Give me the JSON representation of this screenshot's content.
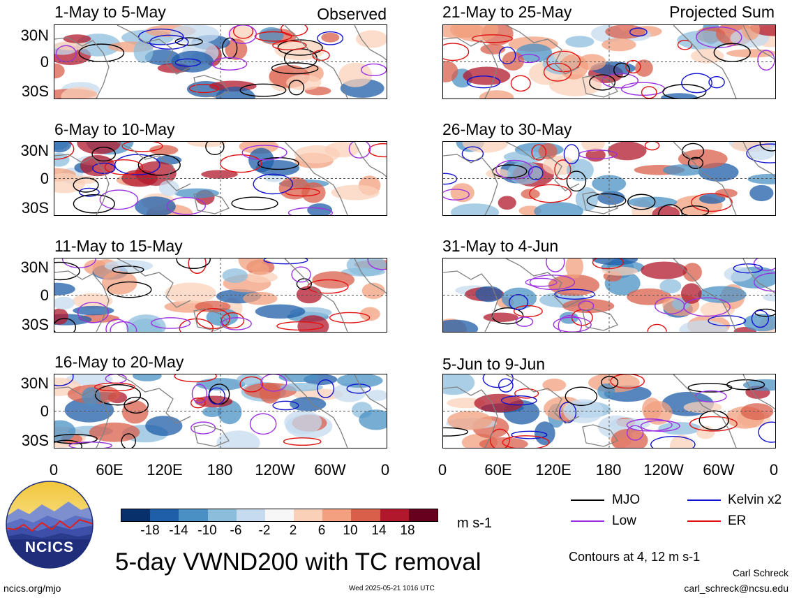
{
  "panels": {
    "left": [
      {
        "title": "1-May to 5-May",
        "label": "Observed"
      },
      {
        "title": "6-May to 10-May",
        "label": ""
      },
      {
        "title": "11-May to 15-May",
        "label": ""
      },
      {
        "title": "16-May to 20-May",
        "label": ""
      }
    ],
    "right": [
      {
        "title": "21-May to 25-May",
        "label": "Projected Sum"
      },
      {
        "title": "26-May to 30-May",
        "label": ""
      },
      {
        "title": "31-May to 4-Jun",
        "label": ""
      },
      {
        "title": "5-Jun to 9-Jun",
        "label": ""
      }
    ]
  },
  "axes": {
    "lat_labels": [
      "30N",
      "0",
      "30S"
    ],
    "lon_labels": [
      "0",
      "60E",
      "120E",
      "180",
      "120W",
      "60W",
      "0"
    ]
  },
  "colorbar": {
    "labels": [
      "-18",
      "-14",
      "-10",
      "-6",
      "-2",
      "2",
      "6",
      "10",
      "14",
      "18"
    ],
    "colors": [
      "#08306b",
      "#1f5ea8",
      "#4a90c4",
      "#8cbedc",
      "#c6dbef",
      "#f7f7f7",
      "#fbd0b8",
      "#f2a07f",
      "#d95f4b",
      "#b2182b",
      "#67001f"
    ],
    "units": "m s-1"
  },
  "legend": {
    "items": [
      {
        "label": "MJO",
        "color": "#000000"
      },
      {
        "label": "Kelvin x2",
        "color": "#1010d0"
      },
      {
        "label": "Low",
        "color": "#9b30e0"
      },
      {
        "label": "ER",
        "color": "#e01010"
      }
    ],
    "contours_note": "Contours at 4, 12 m s-1"
  },
  "logo": {
    "text": "NCICS"
  },
  "main_title": "5-day VWND200 with TC removal",
  "footer": {
    "url": "ncics.org/mjo",
    "timestamp": "Wed 2025-05-21 1016 UTC",
    "author": "Carl Schreck",
    "email": "carl_schreck@ncsu.edu"
  }
}
